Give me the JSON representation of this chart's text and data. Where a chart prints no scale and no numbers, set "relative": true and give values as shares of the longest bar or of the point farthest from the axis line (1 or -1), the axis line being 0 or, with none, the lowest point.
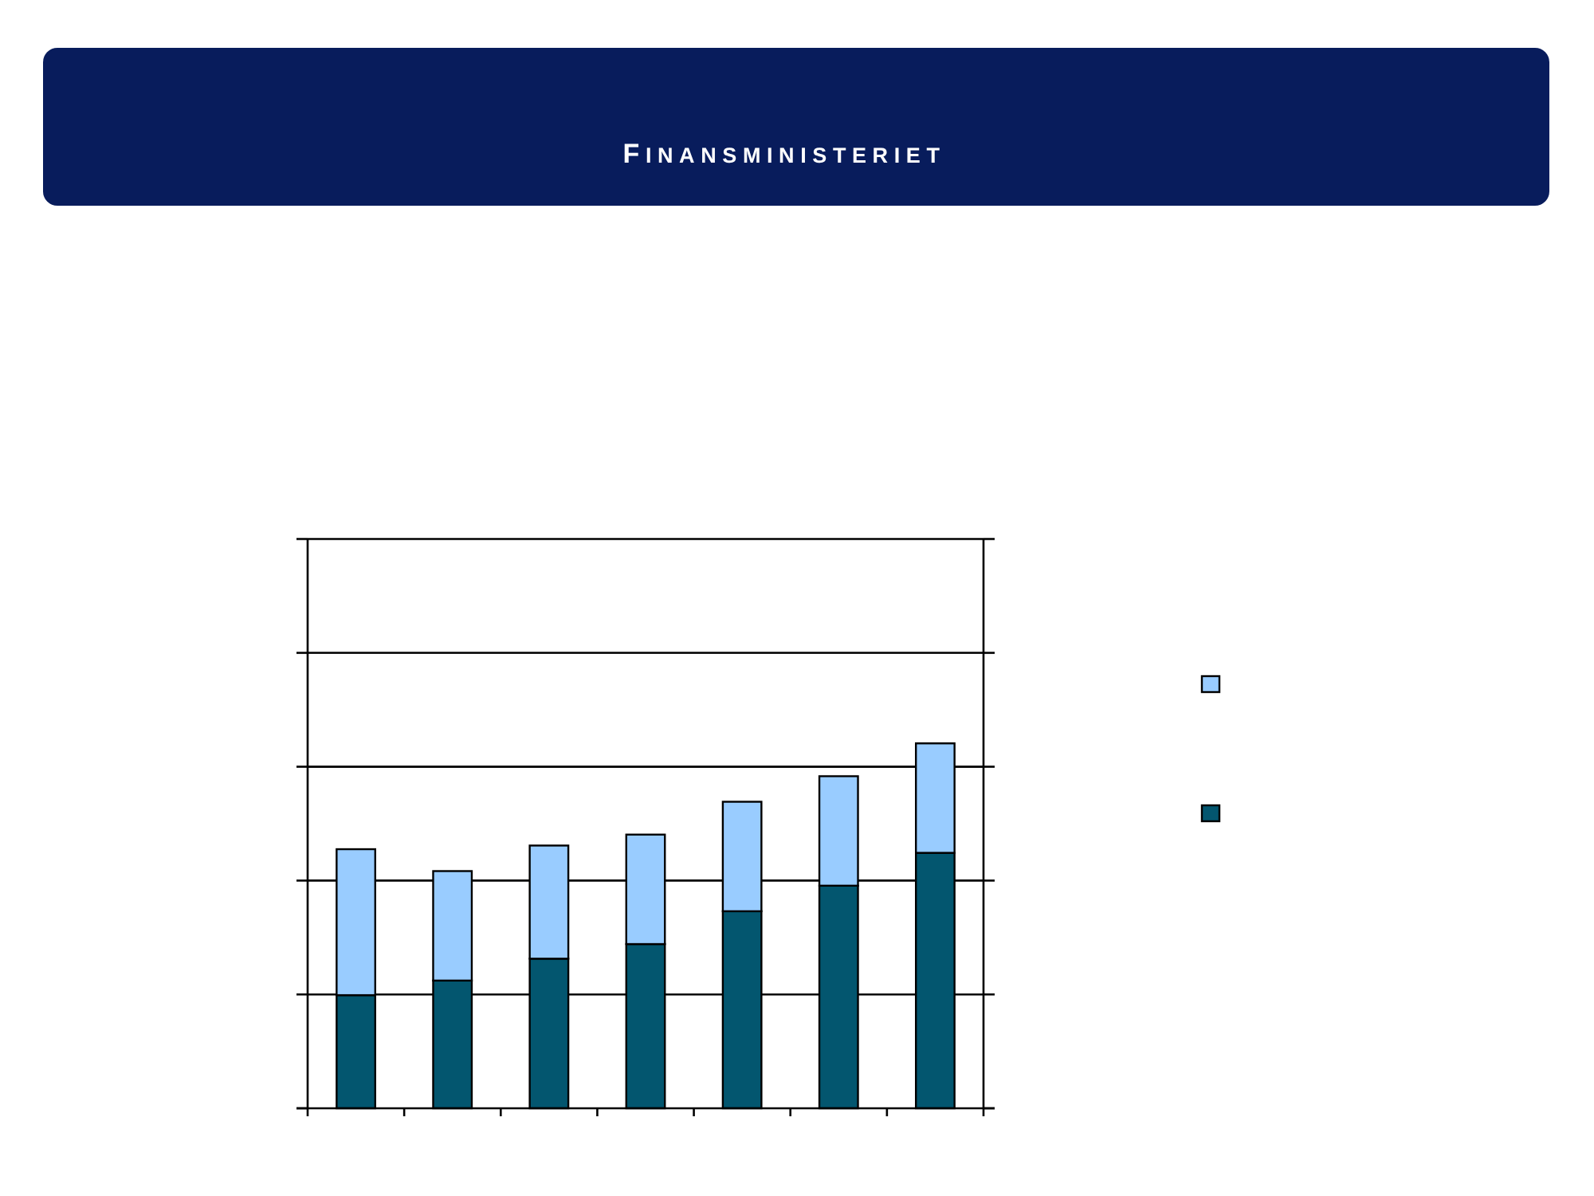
{
  "chart_data": {
    "type": "bar",
    "annotations": [
      "FINANSMINISTERIET"
    ],
    "categories": [
      null,
      null,
      null,
      null,
      null,
      null,
      null
    ],
    "series": [
      {
        "color": "#03566f",
        "values": [
          0.31,
          0.35,
          0.41,
          0.45,
          0.54,
          0.61,
          0.7
        ]
      },
      {
        "color": "#99ccff",
        "values": [
          0.4,
          0.3,
          0.31,
          0.3,
          0.3,
          0.3,
          0.3
        ]
      }
    ],
    "stacked": true,
    "relative": true,
    "grid": "y"
  }
}
